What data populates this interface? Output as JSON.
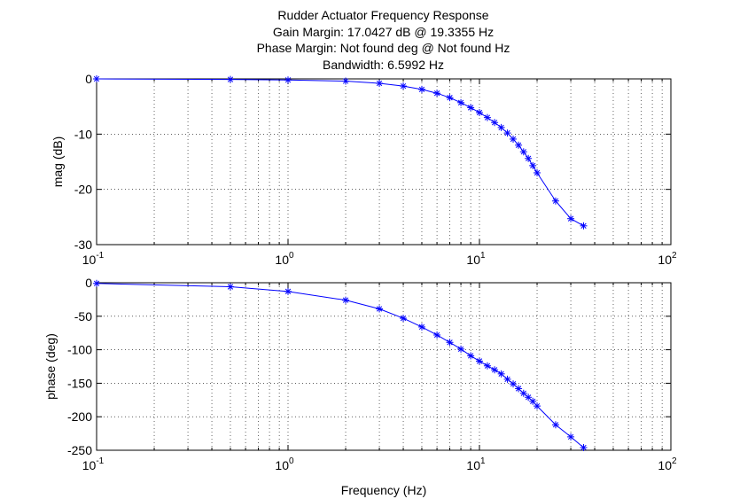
{
  "title_lines": [
    "Rudder Actuator Frequency Response",
    "Gain Margin: 17.0427 dB @ 19.3355 Hz",
    "Phase Margin: Not found deg @ Not found Hz",
    "Bandwidth: 6.5992 Hz"
  ],
  "colors": {
    "series": "#0000ff",
    "axes": "#000000",
    "grid": "#000000",
    "background": "#ffffff"
  },
  "chart_data": [
    {
      "type": "line",
      "xscale": "log",
      "xlim": [
        0.1,
        100
      ],
      "ylim": [
        -30,
        0
      ],
      "xticks": [
        0.1,
        1,
        10,
        100
      ],
      "xtick_labels": [
        {
          "base": "10",
          "exp": "-1"
        },
        {
          "base": "10",
          "exp": "0"
        },
        {
          "base": "10",
          "exp": "1"
        },
        {
          "base": "10",
          "exp": "2"
        }
      ],
      "yticks": [
        -30,
        -20,
        -10,
        0
      ],
      "ytick_labels": [
        "-30",
        "-20",
        "-10",
        "0"
      ],
      "ylabel": "mag (dB)",
      "xlabel": "",
      "grid": true,
      "marker": "asterisk",
      "x": [
        0.1,
        0.5,
        1,
        2,
        3,
        4,
        5,
        6,
        7,
        8,
        9,
        10,
        11,
        12,
        13,
        14,
        15,
        16,
        17,
        18,
        19,
        20,
        25,
        30,
        35
      ],
      "y": [
        0,
        -0.1,
        -0.2,
        -0.4,
        -0.8,
        -1.3,
        -1.9,
        -2.6,
        -3.4,
        -4.3,
        -5.2,
        -6.1,
        -7.0,
        -7.9,
        -8.8,
        -9.8,
        -10.9,
        -12.0,
        -13.2,
        -14.4,
        -15.7,
        -17.0,
        -22.1,
        -25.3,
        -26.6
      ]
    },
    {
      "type": "line",
      "xscale": "log",
      "xlim": [
        0.1,
        100
      ],
      "ylim": [
        -250,
        0
      ],
      "xticks": [
        0.1,
        1,
        10,
        100
      ],
      "xtick_labels": [
        {
          "base": "10",
          "exp": "-1"
        },
        {
          "base": "10",
          "exp": "0"
        },
        {
          "base": "10",
          "exp": "1"
        },
        {
          "base": "10",
          "exp": "2"
        }
      ],
      "yticks": [
        -250,
        -200,
        -150,
        -100,
        -50,
        0
      ],
      "ytick_labels": [
        "-250",
        "-200",
        "-150",
        "-100",
        "-50",
        "0"
      ],
      "ylabel": "phase (deg)",
      "xlabel": "Frequency (Hz)",
      "grid": true,
      "marker": "asterisk",
      "x": [
        0.1,
        0.5,
        1,
        2,
        3,
        4,
        5,
        6,
        7,
        8,
        9,
        10,
        11,
        12,
        13,
        14,
        15,
        16,
        17,
        18,
        19,
        20,
        25,
        30,
        35
      ],
      "y": [
        -1,
        -6,
        -13,
        -26,
        -39,
        -53,
        -66,
        -78,
        -89,
        -99,
        -109,
        -117,
        -124,
        -130,
        -136,
        -144,
        -151,
        -158,
        -165,
        -171,
        -177,
        -184,
        -212,
        -230,
        -246
      ]
    }
  ]
}
